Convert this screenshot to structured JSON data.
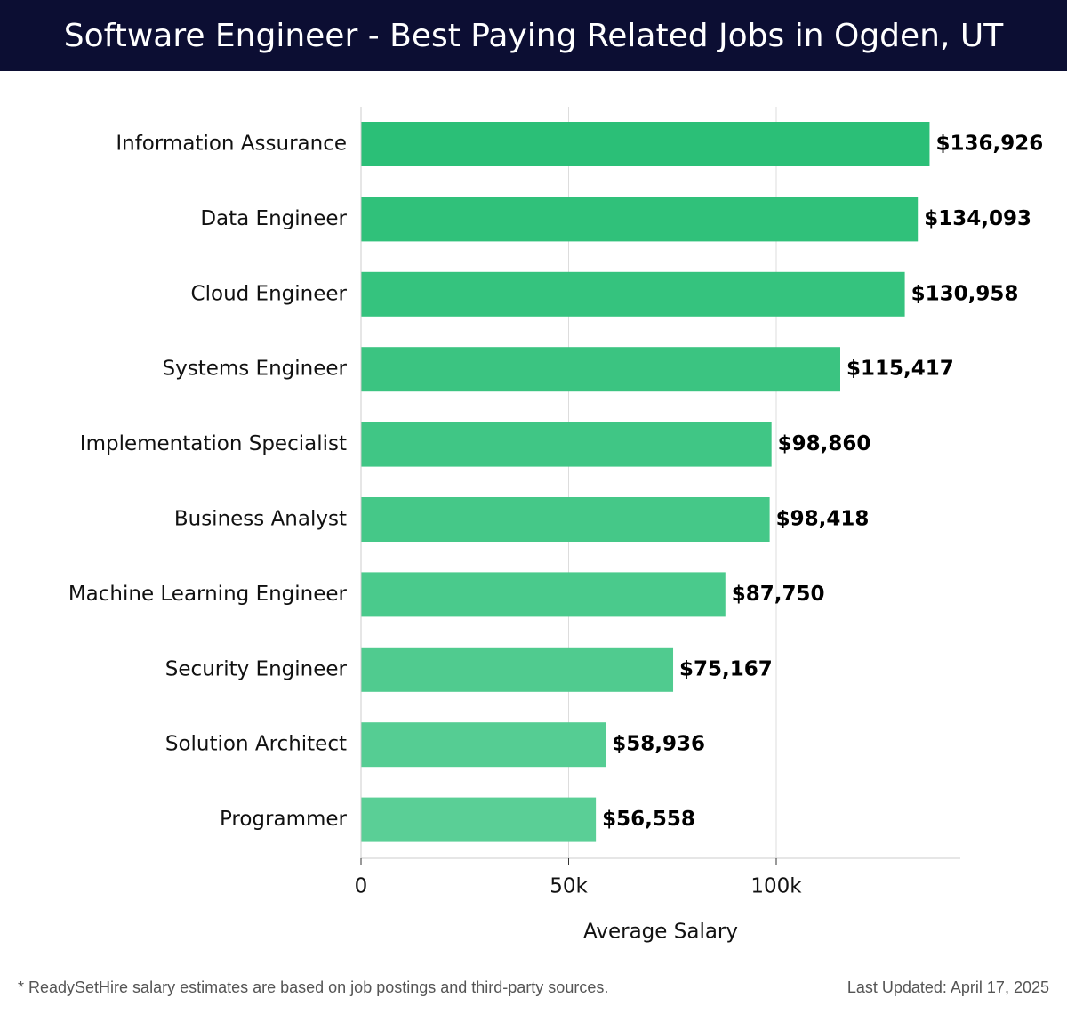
{
  "header": {
    "title": "Software Engineer - Best Paying Related Jobs in Ogden, UT"
  },
  "footer": {
    "note": "* ReadySetHire salary estimates are based on job postings and third-party sources.",
    "updated": "Last Updated: April 17, 2025"
  },
  "colors": {
    "header_bg": "#0c0e33",
    "bar_dark": "#2bbf77",
    "bar_light": "#5acf96"
  },
  "chart_data": {
    "type": "bar",
    "orientation": "horizontal",
    "title": "Software Engineer - Best Paying Related Jobs in Ogden, UT",
    "xlabel": "Average Salary",
    "ylabel": "",
    "xlim": [
      0,
      144000
    ],
    "xticks": [
      {
        "value": 0,
        "label": "0"
      },
      {
        "value": 50000,
        "label": "50k"
      },
      {
        "value": 100000,
        "label": "100k"
      }
    ],
    "grid": true,
    "categories": [
      "Information Assurance",
      "Data Engineer",
      "Cloud Engineer",
      "Systems Engineer",
      "Implementation Specialist",
      "Business Analyst",
      "Machine Learning Engineer",
      "Security Engineer",
      "Solution Architect",
      "Programmer"
    ],
    "values": [
      136926,
      134093,
      130958,
      115417,
      98860,
      98418,
      87750,
      75167,
      58936,
      56558
    ],
    "value_labels": [
      "$136,926",
      "$134,093",
      "$130,958",
      "$115,417",
      "$98,860",
      "$98,418",
      "$87,750",
      "$75,167",
      "$58,936",
      "$56,558"
    ]
  }
}
